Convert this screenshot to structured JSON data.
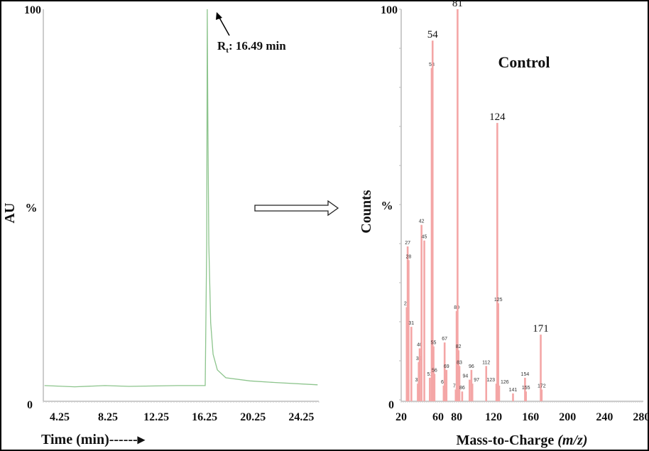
{
  "chart_data": [
    {
      "type": "line",
      "ylabel": "AU",
      "y_unit_label": "%",
      "xlabel": "Time (min)------▸",
      "y_tick_labels": [
        "100",
        "0"
      ],
      "x_tick_labels": [
        "4.25",
        "8.25",
        "12.25",
        "16.25",
        "20.25",
        "24.25"
      ],
      "x_ticks": [
        4.25,
        8.25,
        12.25,
        16.25,
        20.25,
        24.25
      ],
      "xlim": [
        2.9,
        25.7
      ],
      "ylim": [
        0,
        100
      ],
      "grid": false,
      "color": "#8cc48c",
      "annotation": {
        "text_main": "R",
        "text_sub": "t",
        "text_rest": ": 16.49 min",
        "x": 16.49,
        "y": 100
      },
      "points": [
        [
          3.0,
          4
        ],
        [
          5.5,
          3.7
        ],
        [
          8,
          4
        ],
        [
          10,
          3.8
        ],
        [
          14,
          4
        ],
        [
          16.3,
          4
        ],
        [
          16.42,
          40
        ],
        [
          16.47,
          100
        ],
        [
          16.52,
          70
        ],
        [
          16.6,
          40
        ],
        [
          16.75,
          20
        ],
        [
          16.95,
          12
        ],
        [
          17.3,
          8
        ],
        [
          18,
          6
        ],
        [
          20,
          5.2
        ],
        [
          22,
          4.8
        ],
        [
          25.6,
          4.2
        ]
      ]
    },
    {
      "type": "bar",
      "title": "Control",
      "ylabel": "Counts",
      "y_unit_label": "%",
      "xlabel_main": "Mass-to-Charge ",
      "xlabel_italic": "(m/z)",
      "y_tick_labels": [
        "100",
        "0"
      ],
      "x_tick_labels": [
        "20",
        "60",
        "80",
        "120",
        "160",
        "200",
        "240",
        "280"
      ],
      "x_ticks": [
        20,
        60,
        80,
        120,
        160,
        200,
        240,
        280
      ],
      "xlim": [
        20,
        282
      ],
      "ylim": [
        0,
        100
      ],
      "grid": false,
      "color": "#f4a6a6",
      "large_labels": [
        "81",
        "124",
        "171",
        "54"
      ],
      "peaks": [
        {
          "mz": 26,
          "value": 24
        },
        {
          "mz": 27,
          "value": 39.5
        },
        {
          "mz": 28,
          "value": 36
        },
        {
          "mz": 31,
          "value": 19
        },
        {
          "mz": 38,
          "value": 4.5
        },
        {
          "mz": 39,
          "value": 10
        },
        {
          "mz": 40,
          "value": 13.5
        },
        {
          "mz": 42,
          "value": 45
        },
        {
          "mz": 45,
          "value": 41
        },
        {
          "mz": 51,
          "value": 6
        },
        {
          "mz": 53,
          "value": 85
        },
        {
          "mz": 54,
          "value": 92
        },
        {
          "mz": 55,
          "value": 14
        },
        {
          "mz": 56,
          "value": 7
        },
        {
          "mz": 66,
          "value": 4
        },
        {
          "mz": 67,
          "value": 15
        },
        {
          "mz": 69,
          "value": 8
        },
        {
          "mz": 79,
          "value": 3
        },
        {
          "mz": 80,
          "value": 23
        },
        {
          "mz": 81,
          "value": 100
        },
        {
          "mz": 82,
          "value": 13
        },
        {
          "mz": 83,
          "value": 9
        },
        {
          "mz": 86,
          "value": 2.5
        },
        {
          "mz": 94,
          "value": 5.5
        },
        {
          "mz": 96,
          "value": 8
        },
        {
          "mz": 97,
          "value": 4.5
        },
        {
          "mz": 112,
          "value": 9
        },
        {
          "mz": 123,
          "value": 4.5
        },
        {
          "mz": 124,
          "value": 71
        },
        {
          "mz": 125,
          "value": 25
        },
        {
          "mz": 126,
          "value": 4
        },
        {
          "mz": 141,
          "value": 2
        },
        {
          "mz": 154,
          "value": 6
        },
        {
          "mz": 155,
          "value": 2.5
        },
        {
          "mz": 171,
          "value": 17
        },
        {
          "mz": 172,
          "value": 3
        }
      ]
    }
  ],
  "arrow_icon": "hollow-right-arrow"
}
